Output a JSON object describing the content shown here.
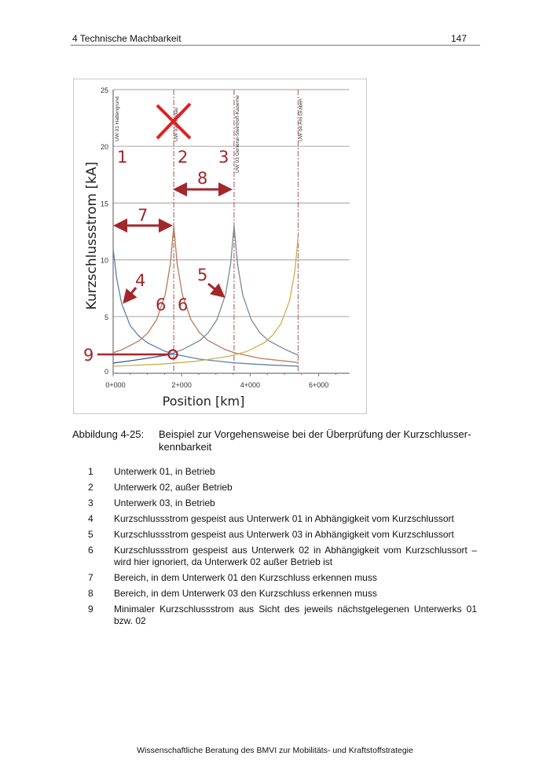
{
  "header": {
    "chapter": "4 Technische Machbarkeit",
    "page_number": "147"
  },
  "figure": {
    "caption_number": "Abbildung 4-25:",
    "caption_text": "Beispiel zur Vorgehensweise bei der Überprüfung der Kurzschlusser-kennbarkeit"
  },
  "chart_data": {
    "type": "line",
    "xlabel": "Position [km]",
    "ylabel": "Kurzschlussstrom [kA]",
    "xlim": [
      0,
      6.9
    ],
    "ylim": [
      0,
      25
    ],
    "x_ticks": [
      {
        "value": 0,
        "label": "0+000"
      },
      {
        "value": 2,
        "label": "2+000"
      },
      {
        "value": 4,
        "label": "4+000"
      },
      {
        "value": 6,
        "label": "6+000"
      }
    ],
    "y_ticks": [
      0,
      5,
      10,
      15,
      20,
      25
    ],
    "grid": "horizontal",
    "substations": [
      {
        "x": 0,
        "label": "UW 01 Hattengrund"
      },
      {
        "x": 1.77,
        "label": "UW 02 Waldau"
      },
      {
        "x": 3.53,
        "label": "UW 03 General-Steinhoff-Kaserne"
      },
      {
        "x": 5.4,
        "label": "UW 04 Am Graben"
      }
    ],
    "series": [
      {
        "color": "#5a80aa",
        "points": [
          [
            0,
            11
          ],
          [
            0.1,
            8.4
          ],
          [
            0.25,
            6.12
          ],
          [
            0.5,
            4.18
          ],
          [
            0.75,
            3.29
          ],
          [
            1,
            2.69
          ],
          [
            1.5,
            1.95
          ],
          [
            1.77,
            1.7
          ],
          [
            2.5,
            1.25
          ],
          [
            3.5,
            0.93
          ],
          [
            4.5,
            0.74
          ],
          [
            5.4,
            0.62
          ]
        ]
      },
      {
        "color": "#b87a5c",
        "points": [
          [
            0,
            1.81
          ],
          [
            0.27,
            2.09
          ],
          [
            0.77,
            2.89
          ],
          [
            1.02,
            3.59
          ],
          [
            1.27,
            4.73
          ],
          [
            1.52,
            6.93
          ],
          [
            1.67,
            9.63
          ],
          [
            1.77,
            13
          ],
          [
            1.87,
            9.63
          ],
          [
            2.02,
            6.93
          ],
          [
            2.27,
            4.73
          ],
          [
            2.52,
            3.59
          ],
          [
            2.77,
            2.89
          ],
          [
            3.27,
            2.09
          ],
          [
            3.54,
            1.81
          ],
          [
            4.27,
            1.32
          ],
          [
            5.4,
            0.95
          ]
        ]
      },
      {
        "color": "#34589a",
        "points": [
          [
            0,
            0.9
          ],
          [
            0.5,
            1.1
          ],
          [
            1,
            1.32
          ],
          [
            1.5,
            1.58
          ],
          [
            1.77,
            1.7
          ]
        ]
      },
      {
        "color": "#7d8799",
        "points": [
          [
            1.77,
            1.81
          ],
          [
            2.03,
            2.09
          ],
          [
            2.53,
            2.89
          ],
          [
            2.78,
            3.59
          ],
          [
            3.03,
            4.73
          ],
          [
            3.28,
            6.93
          ],
          [
            3.43,
            9.63
          ],
          [
            3.53,
            13
          ],
          [
            3.63,
            9.63
          ],
          [
            3.78,
            6.93
          ],
          [
            4.03,
            4.73
          ],
          [
            4.28,
            3.59
          ],
          [
            4.53,
            2.89
          ],
          [
            5.03,
            2.09
          ],
          [
            5.4,
            1.6
          ]
        ]
      },
      {
        "color": "#cfae50",
        "points": [
          [
            0,
            0.62
          ],
          [
            1.4,
            0.81
          ],
          [
            2.4,
            1.05
          ],
          [
            3.4,
            1.5
          ],
          [
            3.9,
            1.92
          ],
          [
            4.4,
            2.67
          ],
          [
            4.65,
            3.33
          ],
          [
            4.9,
            4.36
          ],
          [
            5.15,
            6.4
          ],
          [
            5.3,
            8.89
          ],
          [
            5.4,
            12
          ]
        ]
      }
    ],
    "annotations": {
      "color": "#a3262b",
      "labels": [
        "1",
        "2",
        "3",
        "4",
        "5",
        "6",
        "6",
        "7",
        "8",
        "9"
      ],
      "x_mark": "UW 02 außer Betrieb"
    }
  },
  "legend": [
    {
      "num": "1",
      "text": "Unterwerk 01, in Betrieb"
    },
    {
      "num": "2",
      "text": "Unterwerk 02, außer Betrieb"
    },
    {
      "num": "3",
      "text": "Unterwerk 03, in Betrieb"
    },
    {
      "num": "4",
      "text": "Kurzschlussstrom gespeist aus Unterwerk 01 in Abhängigkeit vom Kurzschlussort"
    },
    {
      "num": "5",
      "text": "Kurzschlussstrom gespeist aus Unterwerk 03 in Abhängigkeit vom Kurzschlussort"
    },
    {
      "num": "6",
      "text": "Kurzschlussstrom gespeist aus Unterwerk 02 in Abhängigkeit vom Kurzschlussort – wird hier ignoriert, da Unterwerk 02 außer Betrieb ist"
    },
    {
      "num": "7",
      "text": "Bereich, in dem Unterwerk 01 den Kurzschluss erkennen muss"
    },
    {
      "num": "8",
      "text": "Bereich, in dem Unterwerk 03 den Kurzschluss erkennen muss"
    },
    {
      "num": "9",
      "text": "Minimaler Kurzschlussstrom aus Sicht des jeweils nächstgelegenen Unterwerks 01 bzw. 02"
    }
  ],
  "footer": "Wissenschaftliche Beratung des BMVI zur Mobilitäts- und Kraftstoffstrategie"
}
